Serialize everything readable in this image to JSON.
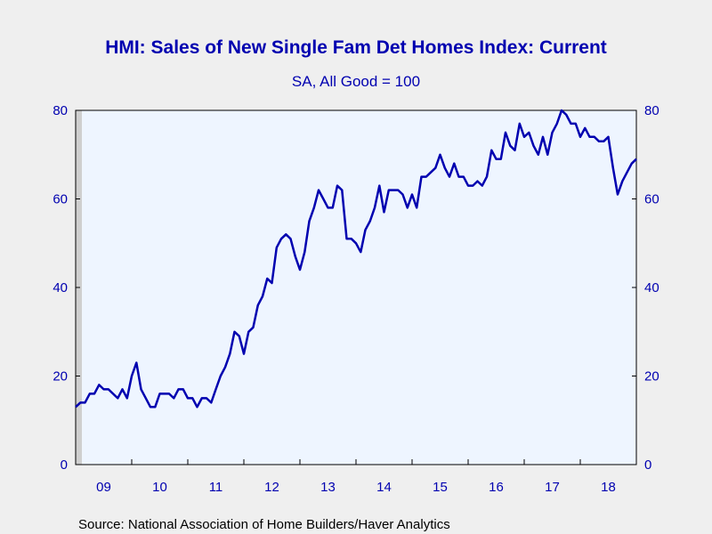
{
  "chart_data": {
    "type": "line",
    "title": "HMI: Sales of New Single Fam Det Homes Index: Current",
    "subtitle": "SA, All Good = 100",
    "source": "Source:  National Association of Home Builders/Haver Analytics",
    "ylim": [
      0,
      80
    ],
    "y_ticks": [
      "0",
      "20",
      "40",
      "60",
      "80"
    ],
    "x_ticks": [
      "09",
      "10",
      "11",
      "12",
      "13",
      "14",
      "15",
      "16",
      "17",
      "18"
    ],
    "x_start": "2009-01",
    "x_end": "2018-12",
    "grid": false,
    "colors": {
      "line": "#0000b0",
      "plot_bg": "#eef5ff",
      "text": "#0000b0"
    },
    "series": [
      {
        "values": [
          13,
          14,
          14,
          16,
          16,
          18,
          17,
          17,
          16,
          15,
          17,
          15,
          20,
          23,
          17,
          15,
          13,
          13,
          16,
          16,
          16,
          15,
          17,
          17,
          15,
          15,
          13,
          15,
          15,
          14,
          17,
          20,
          22,
          25,
          30,
          29,
          25,
          30,
          31,
          36,
          38,
          42,
          41,
          49,
          51,
          52,
          51,
          47,
          44,
          48,
          55,
          58,
          62,
          60,
          58,
          58,
          63,
          62,
          51,
          51,
          50,
          48,
          53,
          55,
          58,
          63,
          57,
          62,
          62,
          62,
          61,
          58,
          61,
          58,
          65,
          65,
          66,
          67,
          70,
          67,
          65,
          68,
          65,
          65,
          63,
          63,
          64,
          63,
          65,
          71,
          69,
          69,
          75,
          72,
          71,
          77,
          74,
          75,
          72,
          70,
          74,
          70,
          75,
          77,
          80,
          79,
          77,
          77,
          74,
          76,
          74,
          74,
          73,
          73,
          74,
          67,
          61,
          64,
          66,
          68,
          69
        ]
      }
    ]
  }
}
